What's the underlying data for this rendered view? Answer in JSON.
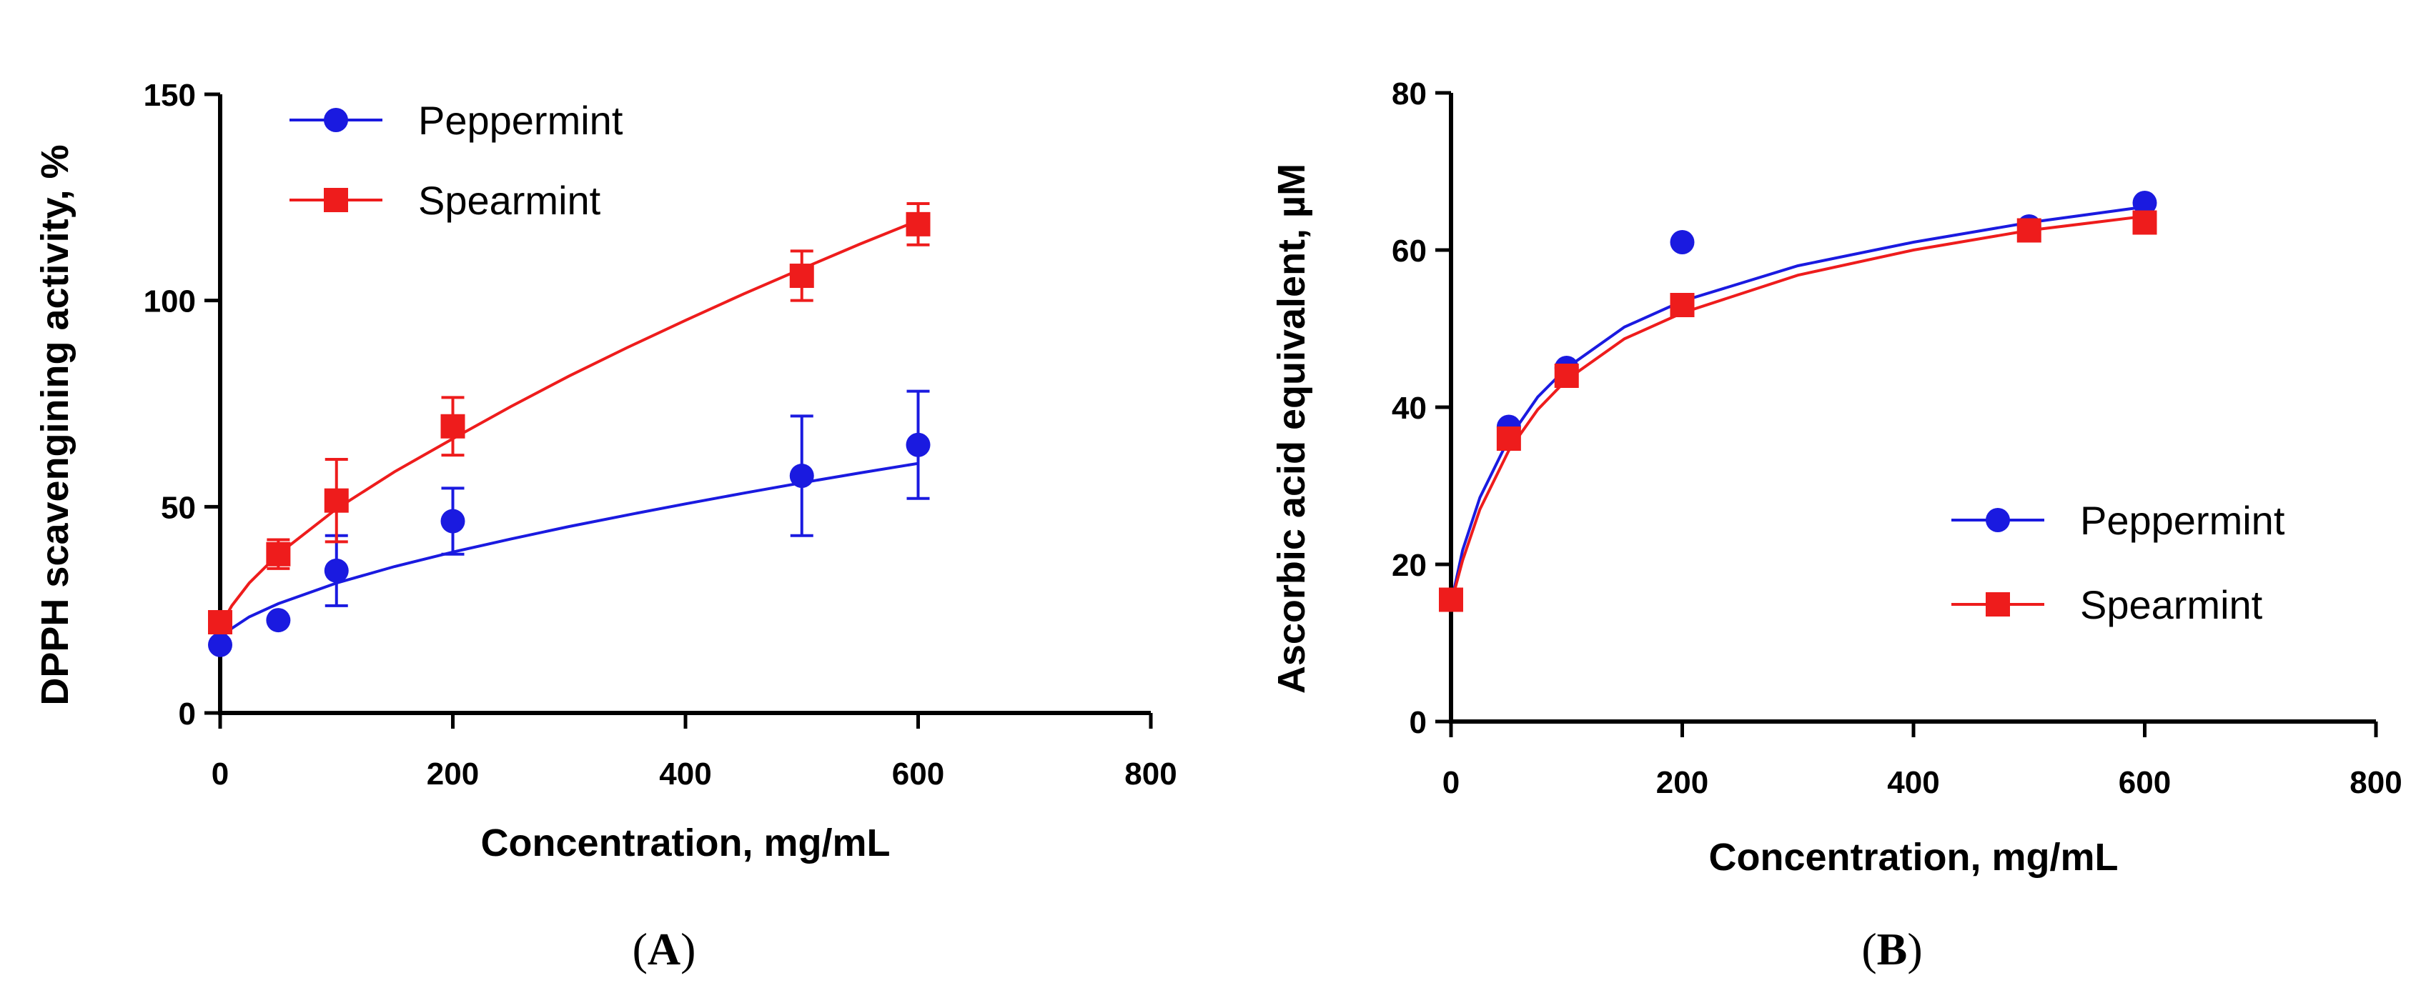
{
  "colors": {
    "peppermint": "#1a1ae0",
    "spearmint": "#ee1c1c",
    "axis": "#000000"
  },
  "chart_data": [
    {
      "type": "scatter",
      "panel_label": "A",
      "xlabel": "Concentration, mg/mL",
      "ylabel": "DPPH scavengining activity, %",
      "xlim": [
        0,
        800
      ],
      "ylim": [
        0,
        150
      ],
      "xticks": [
        0,
        200,
        400,
        600,
        800
      ],
      "yticks": [
        0,
        50,
        100,
        150
      ],
      "legend_position": "top-left",
      "series": [
        {
          "name": "Peppermint",
          "marker": "circle",
          "color": "#1a1ae0",
          "x": [
            0,
            50,
            100,
            200,
            500,
            600
          ],
          "y": [
            16.5,
            22.5,
            34.5,
            46.5,
            57.5,
            65.0
          ],
          "err": [
            0,
            0,
            8.5,
            8.0,
            14.5,
            13.0
          ],
          "fit": [
            [
              0,
              18
            ],
            [
              10,
              20.5
            ],
            [
              25,
              23.3
            ],
            [
              50,
              26.5
            ],
            [
              100,
              31.5
            ],
            [
              150,
              35.5
            ],
            [
              200,
              39
            ],
            [
              250,
              42.2
            ],
            [
              300,
              45.2
            ],
            [
              350,
              48
            ],
            [
              400,
              50.7
            ],
            [
              450,
              53.3
            ],
            [
              500,
              55.8
            ],
            [
              550,
              58.2
            ],
            [
              600,
              60.5
            ]
          ]
        },
        {
          "name": "Spearmint",
          "marker": "square",
          "color": "#ee1c1c",
          "x": [
            0,
            50,
            100,
            200,
            500,
            600
          ],
          "y": [
            22.0,
            38.5,
            51.5,
            69.5,
            106.0,
            118.5
          ],
          "err": [
            0,
            3.5,
            10.0,
            7.0,
            6.0,
            5.0
          ],
          "fit": [
            [
              0,
              21
            ],
            [
              10,
              26
            ],
            [
              25,
              31.5
            ],
            [
              50,
              38.5
            ],
            [
              100,
              49.5
            ],
            [
              150,
              58.5
            ],
            [
              200,
              66.5
            ],
            [
              250,
              74.3
            ],
            [
              300,
              81.7
            ],
            [
              350,
              88.6
            ],
            [
              400,
              95.2
            ],
            [
              450,
              101.6
            ],
            [
              500,
              107.7
            ],
            [
              550,
              113.7
            ],
            [
              600,
              119.4
            ]
          ]
        }
      ]
    },
    {
      "type": "scatter",
      "panel_label": "B",
      "xlabel": "Concentration, mg/mL",
      "ylabel": "Ascorbic acid equivalent, µM",
      "xlim": [
        0,
        800
      ],
      "ylim": [
        0,
        80
      ],
      "xticks": [
        0,
        200,
        400,
        600,
        800
      ],
      "yticks": [
        0,
        20,
        40,
        60,
        80
      ],
      "legend_position": "bottom-right",
      "series": [
        {
          "name": "Peppermint",
          "marker": "circle",
          "color": "#1a1ae0",
          "x": [
            0,
            50,
            100,
            200,
            500,
            600
          ],
          "y": [
            15.5,
            37.5,
            45.0,
            61.0,
            63.0,
            66.0
          ],
          "err": [
            0,
            0,
            0,
            0,
            0,
            0
          ],
          "fit": [
            [
              0,
              15
            ],
            [
              10,
              21.8
            ],
            [
              25,
              28.5
            ],
            [
              50,
              36.0
            ],
            [
              75,
              41.3
            ],
            [
              100,
              45.0
            ],
            [
              150,
              50.2
            ],
            [
              200,
              53.5
            ],
            [
              300,
              58.0
            ],
            [
              400,
              61.0
            ],
            [
              500,
              63.5
            ],
            [
              600,
              65.5
            ]
          ]
        },
        {
          "name": "Spearmint",
          "marker": "square",
          "color": "#ee1c1c",
          "x": [
            0,
            50,
            100,
            200,
            500,
            600
          ],
          "y": [
            15.5,
            36.0,
            44.0,
            53.0,
            62.5,
            63.5
          ],
          "err": [
            0,
            0,
            0,
            0,
            0,
            0
          ],
          "fit": [
            [
              0,
              15
            ],
            [
              10,
              20.5
            ],
            [
              25,
              27.0
            ],
            [
              50,
              34.5
            ],
            [
              75,
              39.7
            ],
            [
              100,
              43.5
            ],
            [
              150,
              48.7
            ],
            [
              200,
              52.0
            ],
            [
              300,
              56.8
            ],
            [
              400,
              60.0
            ],
            [
              500,
              62.5
            ],
            [
              600,
              64.3
            ]
          ]
        }
      ]
    }
  ]
}
